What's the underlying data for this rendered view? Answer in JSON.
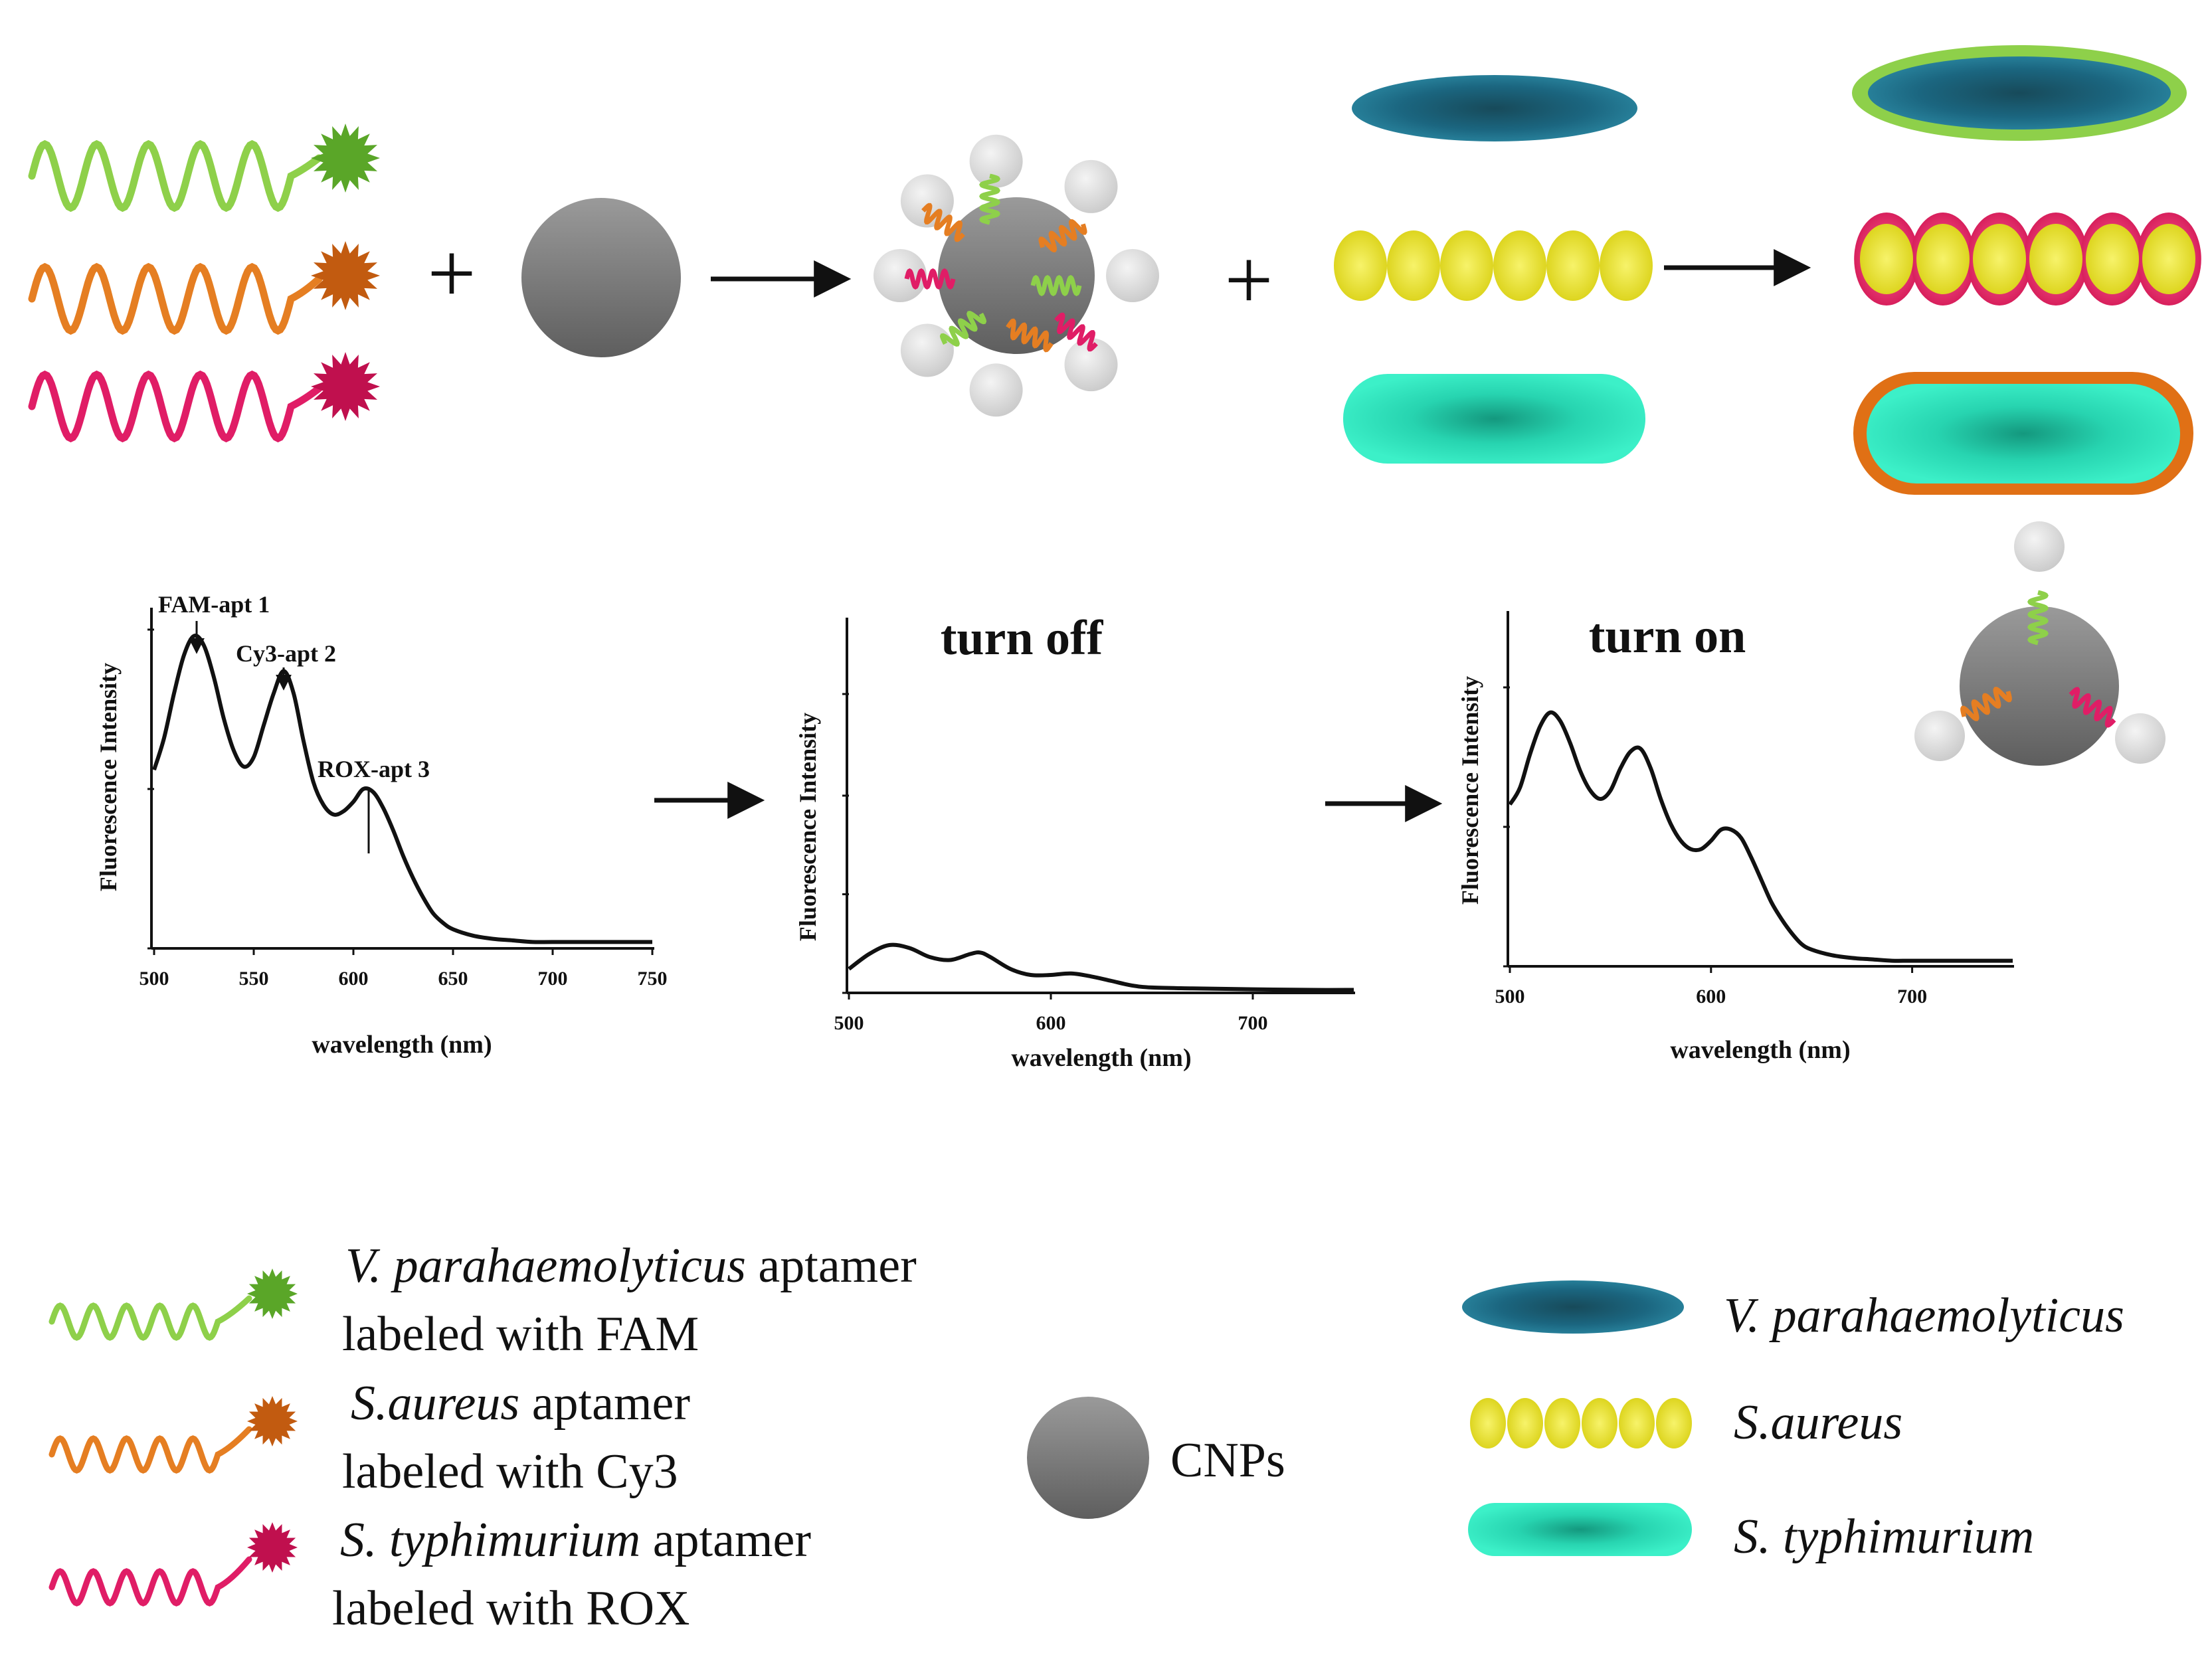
{
  "colors": {
    "green_strand": "#8ed04a",
    "green_dye": "#5aa628",
    "orange_strand": "#e57e22",
    "orange_dye": "#c25b10",
    "pink_strand": "#e01d66",
    "pink_dye": "#c0104e",
    "vp_cell": "#1e6f86",
    "sa_cell": "#f2ec22",
    "st_cell": "#2de3bd",
    "cnp": "#8a8a8a"
  },
  "icons": {
    "plus": "plus-icon",
    "arrow": "arrow-right-icon",
    "cnp": "cnp-sphere-icon",
    "aptamer": "aptamer-strand-icon",
    "quencher": "quencher-bead-icon"
  },
  "operators": {
    "plus": "+"
  },
  "plots": {
    "initial": {
      "ylabel": "Fluorescence Intensity",
      "xlabel": "wavelength (nm)",
      "title": "",
      "peaks": [
        {
          "label": "FAM-apt 1"
        },
        {
          "label": "Cy3-apt 2"
        },
        {
          "label": "ROX-apt 3"
        }
      ]
    },
    "turn_off": {
      "title": "turn off",
      "ylabel": "Fluorescence Intensity",
      "xlabel": "wavelength (nm)"
    },
    "turn_on": {
      "title": "turn on",
      "ylabel": "Fluorescence Intensity",
      "xlabel": "wavelength (nm)"
    }
  },
  "chart_data": [
    {
      "type": "line",
      "title": "",
      "xlabel": "wavelength (nm)",
      "ylabel": "Fluorescence Intensity",
      "xlim": [
        500,
        750
      ],
      "ylim": [
        0,
        1.0
      ],
      "xticks": [
        "500",
        "550",
        "600",
        "650",
        "700",
        "750"
      ],
      "series": [
        {
          "x": [
            500,
            505,
            510,
            515,
            520,
            525,
            530,
            535,
            540,
            545,
            550,
            555,
            560,
            565,
            570,
            575,
            580,
            585,
            590,
            595,
            600,
            605,
            610,
            615,
            620,
            625,
            630,
            635,
            640,
            645,
            650,
            660,
            670,
            680,
            690,
            700,
            720,
            750
          ],
          "y": [
            0.56,
            0.66,
            0.8,
            0.92,
            0.98,
            0.95,
            0.85,
            0.72,
            0.62,
            0.57,
            0.6,
            0.7,
            0.8,
            0.87,
            0.8,
            0.65,
            0.52,
            0.45,
            0.42,
            0.43,
            0.46,
            0.5,
            0.49,
            0.44,
            0.37,
            0.29,
            0.22,
            0.16,
            0.11,
            0.08,
            0.06,
            0.04,
            0.03,
            0.025,
            0.02,
            0.02,
            0.02,
            0.02
          ]
        }
      ]
    },
    {
      "type": "line",
      "title": "turn off",
      "xlabel": "wavelength (nm)",
      "ylabel": "Fluorescence Intensity",
      "xlim": [
        500,
        750
      ],
      "ylim": [
        0,
        1.0
      ],
      "xticks": [
        "500",
        "600",
        "700"
      ],
      "series": [
        {
          "x": [
            500,
            510,
            520,
            530,
            540,
            550,
            560,
            565,
            570,
            580,
            590,
            600,
            610,
            620,
            630,
            640,
            650,
            670,
            700,
            730,
            750
          ],
          "y": [
            0.08,
            0.13,
            0.16,
            0.15,
            0.12,
            0.11,
            0.13,
            0.135,
            0.12,
            0.08,
            0.06,
            0.06,
            0.065,
            0.055,
            0.04,
            0.025,
            0.018,
            0.015,
            0.012,
            0.01,
            0.01
          ]
        }
      ]
    },
    {
      "type": "line",
      "title": "turn on",
      "xlabel": "wavelength (nm)",
      "ylabel": "Fluorescence Intensity",
      "xlim": [
        500,
        750
      ],
      "ylim": [
        0,
        1.0
      ],
      "xticks": [
        "500",
        "600",
        "700"
      ],
      "series": [
        {
          "x": [
            500,
            505,
            510,
            515,
            520,
            525,
            530,
            535,
            540,
            545,
            550,
            555,
            560,
            565,
            570,
            575,
            580,
            585,
            590,
            595,
            600,
            605,
            610,
            615,
            620,
            625,
            630,
            635,
            640,
            645,
            650,
            660,
            670,
            680,
            690,
            700,
            720,
            750
          ],
          "y": [
            0.58,
            0.64,
            0.76,
            0.86,
            0.91,
            0.88,
            0.8,
            0.7,
            0.63,
            0.6,
            0.63,
            0.71,
            0.77,
            0.78,
            0.71,
            0.6,
            0.51,
            0.45,
            0.42,
            0.42,
            0.45,
            0.49,
            0.49,
            0.46,
            0.39,
            0.31,
            0.23,
            0.17,
            0.12,
            0.08,
            0.06,
            0.04,
            0.03,
            0.025,
            0.02,
            0.02,
            0.02,
            0.02
          ]
        }
      ]
    }
  ],
  "legend": {
    "vp_aptamer": {
      "species": "V. parahaemolyticus",
      "suffix": " aptamer",
      "line2": "labeled with FAM"
    },
    "sa_aptamer": {
      "species": "S.aureus",
      "suffix": " aptamer",
      "line2": "labeled with Cy3"
    },
    "st_aptamer": {
      "species": "S. typhimurium",
      "suffix": " aptamer",
      "line2": "labeled with ROX"
    },
    "cnps": "CNPs",
    "vp": "V. parahaemolyticus",
    "sa": "S.aureus",
    "st": "S. typhimurium"
  }
}
